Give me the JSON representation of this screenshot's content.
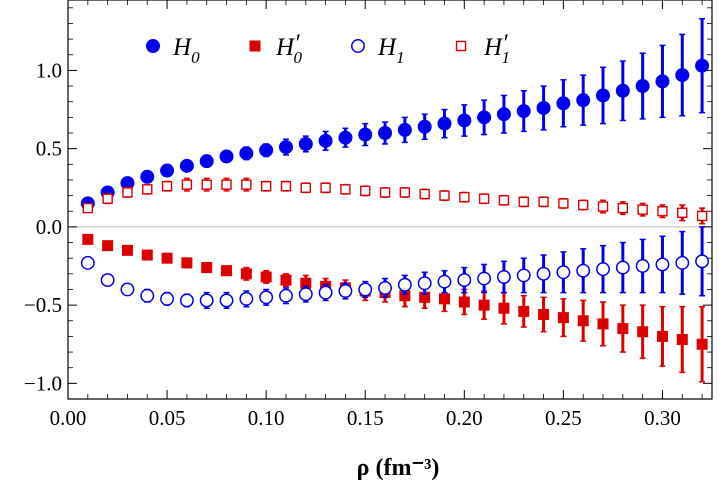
{
  "chart_data": {
    "type": "scatter",
    "title": "",
    "xlabel": "ρ (fm⁻³)",
    "ylabel": "",
    "xlim": [
      0.0,
      0.325
    ],
    "ylim": [
      -1.1,
      1.45
    ],
    "xticks": [
      "0.00",
      "0.05",
      "0.10",
      "0.15",
      "0.20",
      "0.25",
      "0.30"
    ],
    "yticks": [
      "−1.0",
      "−0.5",
      "0.0",
      "0.5",
      "1.0"
    ],
    "zero_line": true,
    "legend_position": "top",
    "x": [
      0.01,
      0.02,
      0.03,
      0.04,
      0.05,
      0.06,
      0.07,
      0.08,
      0.09,
      0.1,
      0.11,
      0.12,
      0.13,
      0.14,
      0.15,
      0.16,
      0.17,
      0.18,
      0.19,
      0.2,
      0.21,
      0.22,
      0.23,
      0.24,
      0.25,
      0.26,
      0.27,
      0.28,
      0.29,
      0.3,
      0.31,
      0.32
    ],
    "series": [
      {
        "name": "H0",
        "display_main": "H",
        "display_sub": "0",
        "display_prime": "",
        "marker": "circle-filled",
        "color": "#0000ee",
        "values": [
          0.15,
          0.22,
          0.28,
          0.32,
          0.36,
          0.39,
          0.42,
          0.45,
          0.47,
          0.49,
          0.51,
          0.53,
          0.55,
          0.57,
          0.59,
          0.6,
          0.62,
          0.64,
          0.66,
          0.68,
          0.7,
          0.72,
          0.74,
          0.76,
          0.79,
          0.81,
          0.84,
          0.87,
          0.9,
          0.93,
          0.97,
          1.03
        ],
        "errors": [
          0.02,
          0.02,
          0.02,
          0.02,
          0.03,
          0.03,
          0.03,
          0.03,
          0.04,
          0.04,
          0.05,
          0.05,
          0.06,
          0.06,
          0.07,
          0.07,
          0.08,
          0.08,
          0.09,
          0.1,
          0.11,
          0.12,
          0.13,
          0.14,
          0.15,
          0.16,
          0.18,
          0.19,
          0.21,
          0.23,
          0.26,
          0.3
        ]
      },
      {
        "name": "H0'",
        "display_main": "H",
        "display_sub": "0",
        "display_prime": "′",
        "marker": "square-filled",
        "color": "#dd0000",
        "values": [
          -0.08,
          -0.12,
          -0.15,
          -0.18,
          -0.2,
          -0.23,
          -0.26,
          -0.28,
          -0.3,
          -0.32,
          -0.34,
          -0.36,
          -0.38,
          -0.39,
          -0.41,
          -0.42,
          -0.44,
          -0.45,
          -0.46,
          -0.48,
          -0.5,
          -0.52,
          -0.54,
          -0.56,
          -0.58,
          -0.6,
          -0.62,
          -0.65,
          -0.67,
          -0.7,
          -0.72,
          -0.75
        ],
        "errors": [
          0.02,
          0.02,
          0.02,
          0.02,
          0.02,
          0.03,
          0.03,
          0.03,
          0.04,
          0.04,
          0.04,
          0.05,
          0.05,
          0.05,
          0.06,
          0.06,
          0.07,
          0.07,
          0.08,
          0.08,
          0.09,
          0.1,
          0.1,
          0.11,
          0.12,
          0.13,
          0.14,
          0.15,
          0.17,
          0.19,
          0.21,
          0.24
        ]
      },
      {
        "name": "H1",
        "display_main": "H",
        "display_sub": "1",
        "display_prime": "",
        "marker": "circle-open",
        "color": "#0000ee",
        "values": [
          -0.23,
          -0.34,
          -0.4,
          -0.44,
          -0.46,
          -0.47,
          -0.47,
          -0.47,
          -0.46,
          -0.45,
          -0.44,
          -0.43,
          -0.42,
          -0.41,
          -0.4,
          -0.39,
          -0.37,
          -0.36,
          -0.35,
          -0.34,
          -0.33,
          -0.32,
          -0.31,
          -0.3,
          -0.29,
          -0.28,
          -0.27,
          -0.26,
          -0.25,
          -0.24,
          -0.23,
          -0.22
        ],
        "errors": [
          0.02,
          0.03,
          0.03,
          0.04,
          0.04,
          0.04,
          0.05,
          0.05,
          0.05,
          0.05,
          0.05,
          0.05,
          0.05,
          0.05,
          0.05,
          0.06,
          0.06,
          0.07,
          0.07,
          0.08,
          0.09,
          0.1,
          0.11,
          0.12,
          0.13,
          0.14,
          0.15,
          0.16,
          0.17,
          0.18,
          0.2,
          0.22
        ]
      },
      {
        "name": "H1'",
        "display_main": "H",
        "display_sub": "1",
        "display_prime": "′",
        "marker": "square-open",
        "color": "#dd0000",
        "values": [
          0.12,
          0.18,
          0.22,
          0.24,
          0.26,
          0.27,
          0.27,
          0.27,
          0.27,
          0.26,
          0.26,
          0.25,
          0.25,
          0.24,
          0.23,
          0.22,
          0.22,
          0.21,
          0.2,
          0.19,
          0.18,
          0.17,
          0.16,
          0.16,
          0.15,
          0.14,
          0.13,
          0.12,
          0.11,
          0.1,
          0.09,
          0.07
        ],
        "errors": [
          0.02,
          0.03,
          0.03,
          0.03,
          0.03,
          0.04,
          0.04,
          0.04,
          0.04,
          0.03,
          0.03,
          0.03,
          0.03,
          0.03,
          0.03,
          0.03,
          0.03,
          0.03,
          0.03,
          0.03,
          0.03,
          0.03,
          0.03,
          0.03,
          0.03,
          0.03,
          0.04,
          0.04,
          0.04,
          0.04,
          0.05,
          0.05
        ]
      }
    ]
  }
}
